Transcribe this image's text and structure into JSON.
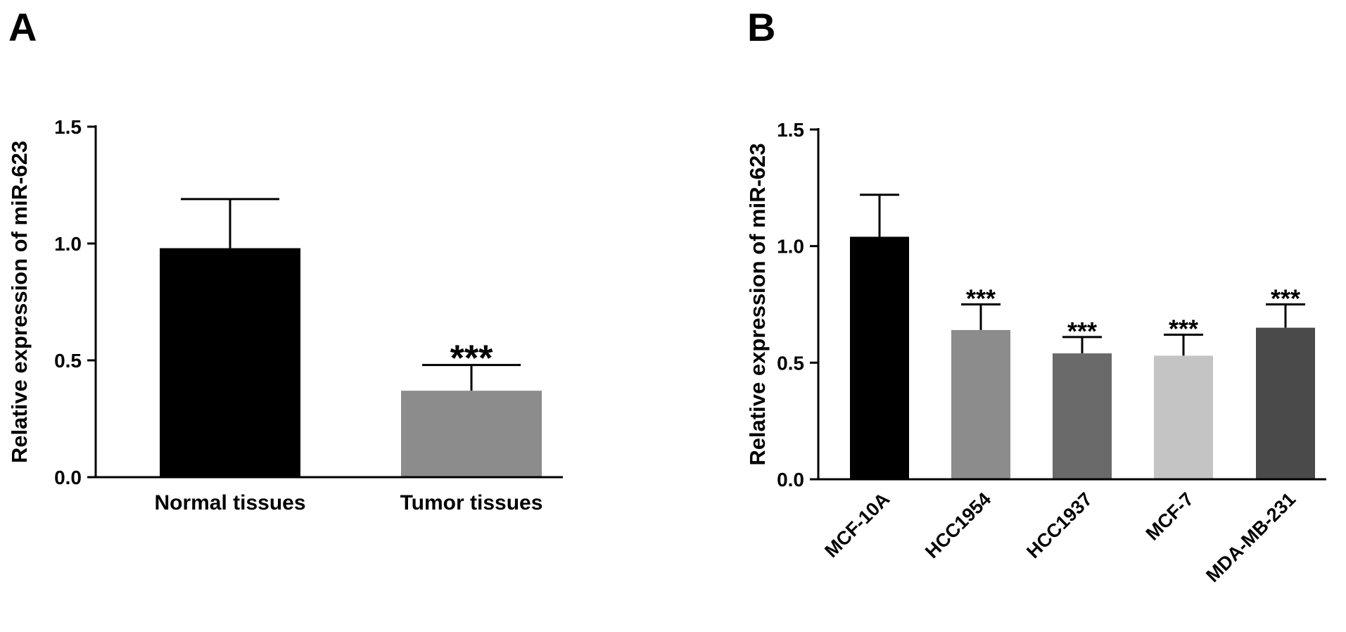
{
  "panels": {
    "a": {
      "letter": "A"
    },
    "b": {
      "letter": "B"
    }
  },
  "chart_data": [
    {
      "type": "bar",
      "ylabel": "Relative expression of miR-623",
      "ylim": [
        0,
        1.5
      ],
      "yticks": [
        "0.0",
        "0.5",
        "1.0",
        "1.5"
      ],
      "categories": [
        "Normal tissues",
        "Tumor tissues"
      ],
      "values": [
        0.98,
        0.37
      ],
      "errors": [
        0.21,
        0.11
      ],
      "colors": [
        "#000000",
        "#8c8c8c"
      ],
      "annotations": [
        "",
        "***"
      ],
      "grid": false
    },
    {
      "type": "bar",
      "ylabel": "Relative expression of miR-623",
      "ylim": [
        0,
        1.5
      ],
      "yticks": [
        "0.0",
        "0.5",
        "1.0",
        "1.5"
      ],
      "categories": [
        "MCF-10A",
        "HCC1954",
        "HCC1937",
        "MCF-7",
        "MDA-MB-231"
      ],
      "values": [
        1.04,
        0.64,
        0.54,
        0.53,
        0.65
      ],
      "errors": [
        0.18,
        0.11,
        0.07,
        0.09,
        0.1
      ],
      "colors": [
        "#000000",
        "#8c8c8c",
        "#6a6a6a",
        "#c4c4c4",
        "#4a4a4a"
      ],
      "annotations": [
        "",
        "***",
        "***",
        "***",
        "***"
      ],
      "grid": false
    }
  ]
}
